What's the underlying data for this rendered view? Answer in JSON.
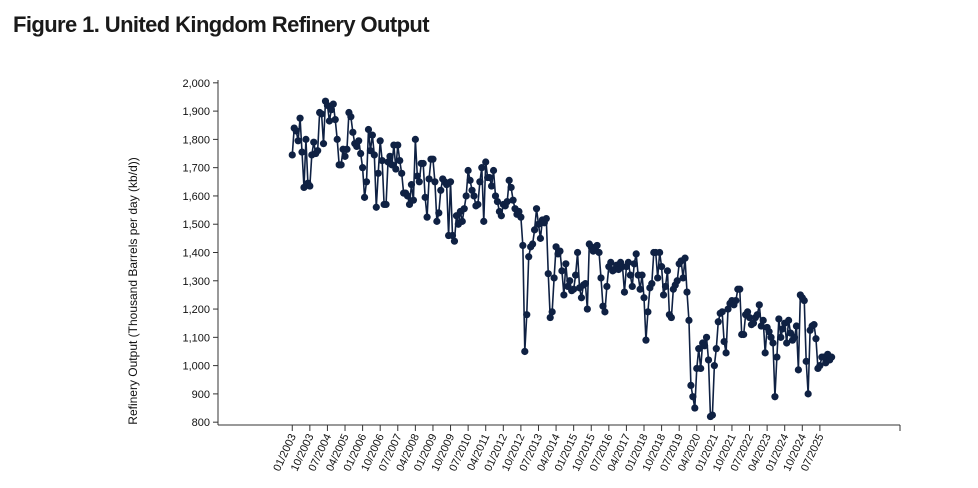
{
  "title": "Figure 1. United Kingdom Refinery Output",
  "chart_data": {
    "type": "line",
    "title": "Figure 1. United Kingdom Refinery Output",
    "xlabel": "",
    "ylabel": "Refinery Output (Thousand Barrels per day (kb/d))",
    "ylim": [
      790,
      2010
    ],
    "y_ticks": [
      800,
      900,
      1000,
      1100,
      1200,
      1300,
      1400,
      1500,
      1600,
      1700,
      1800,
      1900,
      2000
    ],
    "y_tick_labels": [
      "800",
      "900",
      "1,000",
      "1,100",
      "1,200",
      "1,300",
      "1,400",
      "1,500",
      "1,600",
      "1,700",
      "1,800",
      "1,900",
      "2,000"
    ],
    "x_tick_labels": [
      "01/2003",
      "10/2003",
      "07/2004",
      "04/2005",
      "01/2006",
      "10/2006",
      "07/2007",
      "04/2008",
      "01/2009",
      "10/2009",
      "07/2010",
      "04/2011",
      "01/2012",
      "10/2012",
      "07/2013",
      "04/2014",
      "01/2015",
      "10/2015",
      "07/2016",
      "04/2017",
      "01/2018",
      "10/2018",
      "07/2019",
      "04/2020",
      "01/2021",
      "10/2021",
      "07/2022",
      "04/2023",
      "01/2024",
      "10/2024",
      "07/2025"
    ],
    "grid": false,
    "legend": "none",
    "colors": {
      "series": "#0f2143",
      "axis": "#333333",
      "text": "#111111"
    },
    "start_month": "01/2003",
    "x_range_months": [
      "11/1999",
      "12/2028"
    ],
    "series": [
      {
        "values": [
          1745,
          1840,
          1830,
          1795,
          1875,
          1755,
          1630,
          1800,
          1645,
          1635,
          1745,
          1790,
          1750,
          1760,
          1895,
          1890,
          1785,
          1935,
          1920,
          1865,
          1905,
          1925,
          1870,
          1800,
          1710,
          1710,
          1765,
          1740,
          1765,
          1895,
          1880,
          1825,
          1785,
          1775,
          1795,
          1750,
          1700,
          1595,
          1650,
          1835,
          1760,
          1815,
          1745,
          1560,
          1680,
          1795,
          1725,
          1570,
          1570,
          1720,
          1740,
          1710,
          1780,
          1695,
          1780,
          1725,
          1680,
          1610,
          1610,
          1600,
          1570,
          1640,
          1585,
          1800,
          1670,
          1650,
          1715,
          1715,
          1595,
          1525,
          1660,
          1730,
          1730,
          1650,
          1510,
          1540,
          1620,
          1660,
          1650,
          1640,
          1460,
          1650,
          1460,
          1440,
          1530,
          1500,
          1545,
          1510,
          1555,
          1600,
          1690,
          1655,
          1620,
          1600,
          1565,
          1570,
          1650,
          1700,
          1510,
          1720,
          1665,
          1665,
          1635,
          1690,
          1600,
          1580,
          1545,
          1530,
          1570,
          1565,
          1580,
          1655,
          1630,
          1585,
          1555,
          1535,
          1545,
          1525,
          1425,
          1050,
          1180,
          1385,
          1420,
          1430,
          1480,
          1555,
          1500,
          1450,
          1515,
          1505,
          1520,
          1325,
          1170,
          1190,
          1310,
          1420,
          1395,
          1405,
          1335,
          1250,
          1360,
          1280,
          1300,
          1265,
          1270,
          1320,
          1400,
          1275,
          1240,
          1285,
          1290,
          1200,
          1430,
          1420,
          1405,
          1415,
          1425,
          1400,
          1310,
          1210,
          1190,
          1280,
          1350,
          1365,
          1335,
          1340,
          1355,
          1340,
          1365,
          1350,
          1260,
          1350,
          1365,
          1320,
          1280,
          1360,
          1395,
          1320,
          1270,
          1320,
          1240,
          1090,
          1190,
          1275,
          1290,
          1400,
          1400,
          1310,
          1400,
          1350,
          1250,
          1280,
          1335,
          1180,
          1170,
          1270,
          1285,
          1300,
          1360,
          1370,
          1310,
          1380,
          1260,
          1160,
          930,
          890,
          850,
          990,
          1060,
          990,
          1080,
          1070,
          1100,
          1020,
          820,
          825,
          1000,
          1060,
          1155,
          1185,
          1190,
          1085,
          1045,
          1200,
          1220,
          1230,
          1215,
          1230,
          1270,
          1270,
          1110,
          1110,
          1180,
          1190,
          1170,
          1145,
          1150,
          1170,
          1180,
          1215,
          1140,
          1160,
          1045,
          1135,
          1120,
          1100,
          1080,
          890,
          1030,
          1165,
          1100,
          1130,
          1150,
          1080,
          1160,
          1115,
          1090,
          1100,
          1140,
          985,
          1250,
          1240,
          1230,
          1015,
          900,
          1125,
          1140,
          1145,
          1095,
          990,
          1000,
          1030,
          1030,
          1010,
          1040,
          1020,
          1030
        ]
      }
    ]
  }
}
